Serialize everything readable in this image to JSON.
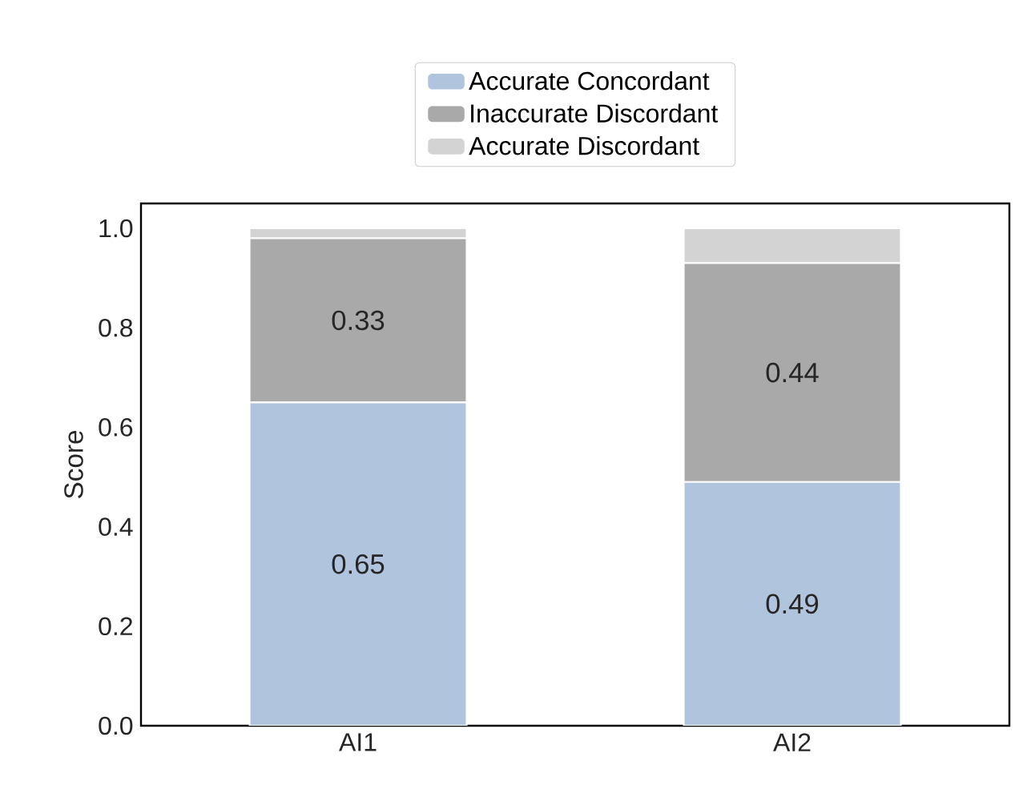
{
  "chart_data": {
    "type": "bar",
    "stacked": true,
    "ylabel": "Score",
    "categories": [
      "AI1",
      "AI2"
    ],
    "ylim": [
      0,
      1.05
    ],
    "yticks": [
      {
        "value": 0,
        "label": "0.0"
      },
      {
        "value": 0.2,
        "label": "0.2"
      },
      {
        "value": 0.4,
        "label": "0.4"
      },
      {
        "value": 0.6,
        "label": "0.6"
      },
      {
        "value": 0.8,
        "label": "0.8"
      },
      {
        "value": 1,
        "label": "1.0"
      }
    ],
    "legend": "top",
    "grid": false,
    "series": [
      {
        "name": "Accurate Concordant",
        "color": "#b0c4de",
        "values": [
          0.65,
          0.49
        ],
        "value_labels": [
          "0.65",
          "0.49"
        ]
      },
      {
        "name": "Inaccurate Discordant",
        "color": "#a9a9a9",
        "values": [
          0.33,
          0.44
        ],
        "value_labels": [
          "0.33",
          "0.44"
        ]
      },
      {
        "name": "Accurate Discordant",
        "color": "#d3d3d3",
        "values": [
          0.02,
          0.07
        ],
        "value_labels": [
          null,
          null
        ]
      }
    ]
  }
}
